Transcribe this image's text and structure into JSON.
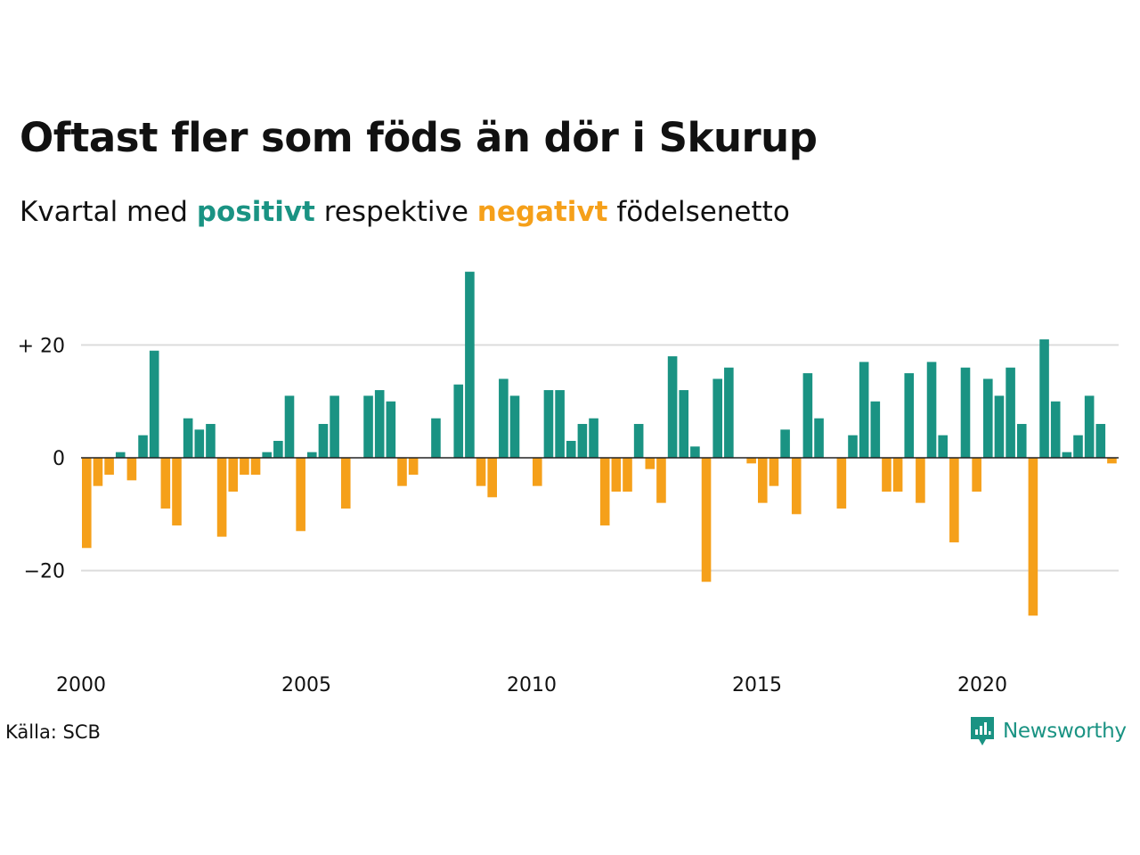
{
  "title": "Oftast fler som föds än dör i Skurup",
  "subtitle": {
    "prefix": "Kvartal med ",
    "positive": "positivt",
    "middle": " respektive ",
    "negative": "negativt",
    "suffix": " födelsenetto"
  },
  "colors": {
    "positive": "#1a9383",
    "negative": "#f5a01a",
    "grid": "#dcdcdc",
    "zero_line": "#222222"
  },
  "source": "Källa: SCB",
  "brand": {
    "name": "Newsworthy",
    "icon": "newsworthy-chart-bubble-icon"
  },
  "chart_data": {
    "type": "bar",
    "x_start": "2000 Q1",
    "series": [
      {
        "values": [
          -16,
          -5,
          -3,
          1,
          -4,
          4,
          19,
          -9,
          -12,
          7,
          5,
          6,
          -14,
          -6,
          -3,
          -3,
          1,
          3,
          11,
          -13,
          1,
          6,
          11,
          -9,
          0,
          11,
          12,
          10,
          -5,
          -3,
          0,
          7,
          0,
          13,
          33,
          -5,
          -7,
          14,
          11,
          0,
          -5,
          12,
          12,
          3,
          6,
          7,
          -12,
          -6,
          -6,
          6,
          -2,
          -8,
          18,
          12,
          2,
          -22,
          14,
          16,
          0,
          -1,
          -8,
          -5,
          5,
          -10,
          15,
          7,
          0,
          -9,
          4,
          17,
          10,
          -6,
          -6,
          15,
          -8,
          17,
          4,
          -15,
          16,
          -6,
          14,
          11,
          16,
          6,
          -28,
          21,
          10,
          1,
          4,
          11,
          6,
          -1
        ]
      }
    ],
    "x_ticks": [
      {
        "label": "2000",
        "year": 2000
      },
      {
        "label": "2005",
        "year": 2005
      },
      {
        "label": "2010",
        "year": 2010
      },
      {
        "label": "2015",
        "year": 2015
      },
      {
        "label": "2020",
        "year": 2020
      }
    ],
    "y_ticks": [
      {
        "label": "+ 20",
        "value": 20
      },
      {
        "label": "0",
        "value": 0
      },
      {
        "label": "−20",
        "value": -20
      }
    ],
    "ylim": [
      -33,
      36
    ],
    "grid": true,
    "legend": "none"
  }
}
